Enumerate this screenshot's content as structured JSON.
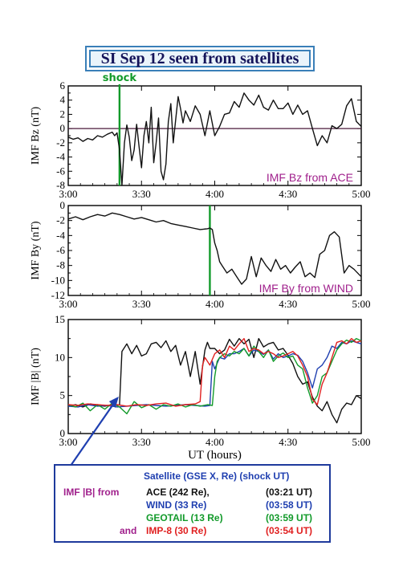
{
  "title": "SI Sep 12 seen from satellites",
  "colors": {
    "title_border": "#3a7fb8",
    "title_text": "#14145a",
    "purple": "#a0208c",
    "blue": "#1f3fb0",
    "green": "#129a2a",
    "red": "#e02020",
    "black": "#111111",
    "zero_line": "#4a1a3a"
  },
  "xaxis": {
    "ticks": [
      "3:00",
      "3:30",
      "4:00",
      "4:30",
      "5:00"
    ],
    "tick_values": [
      0,
      30,
      60,
      90,
      120
    ],
    "label": "UT (hours)"
  },
  "chart_data": [
    {
      "type": "line",
      "ylabel": "IMF Bz (nT)",
      "ylim": [
        -8,
        6
      ],
      "yticks": [
        "6",
        "4",
        "2",
        "0",
        "-2",
        "-4",
        "-6",
        "-8"
      ],
      "ytick_values": [
        6,
        4,
        2,
        0,
        -2,
        -4,
        -6,
        -8
      ],
      "annotation": "IMF Bz from ACE",
      "marker_label": "shock",
      "marker_x": 21,
      "zero_line": true,
      "series": [
        {
          "color": "black",
          "x": [
            0,
            2,
            4,
            6,
            8,
            10,
            12,
            14,
            16,
            18,
            19,
            20,
            21,
            22,
            23,
            24,
            25,
            26,
            27,
            28,
            29,
            30,
            31,
            32,
            33,
            34,
            35,
            36,
            37,
            38,
            39,
            40,
            41,
            42,
            43,
            44,
            45,
            46,
            47,
            48,
            50,
            52,
            54,
            56,
            58,
            60,
            62,
            64,
            66,
            68,
            70,
            72,
            74,
            76,
            78,
            80,
            82,
            84,
            86,
            88,
            90,
            92,
            94,
            96,
            98,
            100,
            102,
            104,
            106,
            108,
            110,
            112,
            114,
            116,
            118,
            120
          ],
          "y": [
            -1.2,
            -1.5,
            -1.3,
            -1.8,
            -1.4,
            -1.6,
            -1.0,
            -1.2,
            -0.8,
            -0.5,
            -1.0,
            -0.6,
            -3.0,
            -8.0,
            -2.0,
            0.5,
            -1.2,
            -4.5,
            -3.0,
            0.6,
            -2.5,
            -5.5,
            -1.0,
            1.0,
            -2.0,
            3.0,
            -4.8,
            -2.0,
            1.5,
            -6.0,
            -7.2,
            -5.0,
            1.0,
            3.5,
            -2.0,
            1.2,
            4.5,
            2.8,
            0.8,
            2.5,
            1.0,
            3.2,
            2.0,
            -1.0,
            2.5,
            -1.0,
            0.3,
            2.0,
            2.2,
            3.8,
            3.0,
            5.0,
            4.0,
            3.3,
            4.7,
            3.0,
            2.6,
            4.0,
            2.8,
            2.8,
            3.6,
            2.0,
            3.3,
            2.0,
            2.5,
            0.0,
            -2.4,
            -1.0,
            -2.0,
            0.4,
            0.0,
            0.6,
            3.2,
            4.2,
            1.0,
            0.3
          ]
        }
      ]
    },
    {
      "type": "line",
      "ylabel": "IMF By (nT)",
      "ylim": [
        -12,
        0
      ],
      "yticks": [
        "0",
        "-2",
        "-4",
        "-6",
        "-8",
        "-10",
        "-12"
      ],
      "ytick_values": [
        0,
        -2,
        -4,
        -6,
        -8,
        -10,
        -12
      ],
      "annotation": "IMF By from WIND",
      "marker_x": 58,
      "series": [
        {
          "color": "black",
          "x": [
            0,
            3,
            6,
            9,
            12,
            15,
            18,
            21,
            24,
            27,
            30,
            33,
            36,
            39,
            42,
            45,
            48,
            51,
            54,
            57,
            58,
            59,
            60,
            61,
            62,
            63,
            65,
            67,
            69,
            71,
            73,
            75,
            77,
            79,
            81,
            83,
            85,
            87,
            89,
            91,
            93,
            95,
            97,
            99,
            101,
            103,
            105,
            107,
            109,
            111,
            113,
            115,
            117,
            120
          ],
          "y": [
            -1.8,
            -1.5,
            -1.9,
            -1.5,
            -1.2,
            -1.4,
            -1.0,
            -1.2,
            -1.5,
            -1.8,
            -1.6,
            -1.9,
            -2.2,
            -2.0,
            -2.4,
            -2.6,
            -2.8,
            -3.0,
            -3.2,
            -3.1,
            -3.0,
            -3.2,
            -5.0,
            -6.0,
            -7.5,
            -8.0,
            -9.0,
            -8.5,
            -9.5,
            -10.5,
            -9.8,
            -6.8,
            -9.5,
            -7.0,
            -8.0,
            -8.8,
            -7.2,
            -8.5,
            -8.0,
            -9.0,
            -8.2,
            -7.5,
            -9.5,
            -9.0,
            -9.6,
            -6.5,
            -6.0,
            -4.0,
            -3.5,
            -4.2,
            -9.0,
            -8.0,
            -8.5,
            -9.5
          ]
        }
      ]
    },
    {
      "type": "line",
      "ylabel": "IMF |B| (nT)",
      "ylim": [
        0,
        15
      ],
      "yticks": [
        "0",
        "5",
        "10",
        "15"
      ],
      "ytick_values": [
        0,
        5,
        10,
        15
      ],
      "series": [
        {
          "color": "black",
          "x": [
            0,
            3,
            6,
            9,
            12,
            15,
            18,
            20,
            21,
            22,
            24,
            26,
            28,
            30,
            32,
            34,
            36,
            38,
            40,
            42,
            44,
            46,
            48,
            50,
            52,
            54,
            56,
            57,
            58,
            60,
            62,
            64,
            66,
            68,
            70,
            72,
            74,
            76,
            78,
            80,
            82,
            84,
            86,
            88,
            90,
            92,
            94,
            96,
            98,
            100,
            102,
            104,
            106,
            108,
            110,
            112,
            114,
            116,
            118,
            120
          ],
          "y": [
            3.6,
            3.8,
            3.5,
            3.9,
            3.7,
            3.6,
            3.8,
            3.7,
            3.8,
            10.8,
            11.8,
            10.5,
            11.6,
            10.2,
            10.5,
            11.8,
            12.0,
            11.3,
            12.2,
            10.8,
            11.6,
            9.0,
            10.8,
            7.5,
            10.8,
            6.5,
            11.0,
            12.0,
            11.2,
            11.2,
            10.5,
            11.0,
            12.4,
            11.5,
            12.5,
            11.8,
            12.4,
            10.0,
            12.5,
            11.4,
            11.8,
            12.0,
            11.0,
            11.2,
            10.3,
            9.2,
            7.5,
            6.5,
            6.8,
            4.8,
            3.6,
            3.0,
            4.2,
            2.5,
            1.4,
            3.2,
            4.0,
            3.8,
            5.0,
            4.6
          ]
        },
        {
          "color": "blue",
          "x": [
            0,
            4,
            8,
            12,
            16,
            20,
            24,
            28,
            32,
            36,
            40,
            44,
            48,
            52,
            56,
            58,
            59,
            60,
            62,
            64,
            66,
            68,
            70,
            72,
            74,
            76,
            78,
            80,
            82,
            84,
            86,
            88,
            90,
            92,
            94,
            96,
            98,
            100,
            102,
            104,
            106,
            108,
            110,
            112,
            114,
            116,
            118,
            120
          ],
          "y": [
            3.6,
            3.5,
            3.8,
            3.6,
            3.7,
            3.5,
            3.6,
            3.7,
            3.8,
            3.7,
            3.6,
            3.7,
            3.8,
            3.7,
            3.6,
            3.7,
            9.5,
            8.5,
            10.0,
            9.8,
            10.5,
            10.5,
            10.8,
            11.2,
            10.2,
            11.0,
            10.8,
            10.4,
            11.0,
            9.8,
            10.5,
            10.0,
            10.2,
            10.5,
            10.3,
            9.5,
            8.0,
            6.0,
            8.5,
            9.0,
            10.0,
            11.5,
            11.2,
            12.0,
            11.8,
            12.2,
            12.0,
            11.8
          ]
        },
        {
          "color": "green",
          "x": [
            0,
            3,
            6,
            9,
            12,
            15,
            18,
            21,
            24,
            27,
            30,
            33,
            36,
            39,
            42,
            45,
            48,
            51,
            54,
            57,
            59,
            60,
            61,
            62,
            64,
            66,
            68,
            70,
            72,
            74,
            76,
            78,
            80,
            82,
            84,
            86,
            88,
            90,
            92,
            94,
            96,
            98,
            100,
            102,
            104,
            106,
            108,
            110,
            112,
            114,
            116,
            118,
            120
          ],
          "y": [
            3.8,
            3.5,
            4.0,
            3.0,
            3.8,
            3.2,
            4.0,
            3.5,
            2.6,
            4.2,
            3.4,
            3.8,
            3.2,
            3.8,
            3.6,
            3.9,
            3.5,
            3.8,
            3.6,
            3.8,
            3.7,
            7.5,
            9.5,
            10.0,
            10.5,
            10.2,
            10.8,
            10.5,
            11.2,
            10.2,
            11.5,
            10.8,
            10.0,
            11.0,
            9.5,
            10.2,
            10.6,
            10.0,
            10.2,
            9.0,
            8.5,
            6.0,
            4.0,
            5.0,
            7.5,
            8.0,
            9.5,
            11.0,
            11.8,
            12.3,
            12.0,
            12.5,
            12.2
          ]
        },
        {
          "color": "red",
          "x": [
            0,
            4,
            8,
            12,
            16,
            20,
            24,
            28,
            32,
            36,
            40,
            42,
            44,
            48,
            52,
            54,
            55,
            56,
            58,
            60,
            62,
            64,
            66,
            68,
            70,
            72,
            74,
            76,
            78,
            80,
            82,
            84,
            86,
            88,
            90,
            92,
            94,
            96,
            98,
            100,
            102,
            104,
            106,
            108,
            110,
            112,
            114,
            116,
            118,
            120
          ],
          "y": [
            3.8,
            3.7,
            3.9,
            3.8,
            3.7,
            3.8,
            3.6,
            3.8,
            3.7,
            3.9,
            4.0,
            3.8,
            3.6,
            3.8,
            3.9,
            4.2,
            9.0,
            10.0,
            9.0,
            10.5,
            11.0,
            10.0,
            11.5,
            11.0,
            11.8,
            12.5,
            10.8,
            11.2,
            11.0,
            10.5,
            10.8,
            10.5,
            10.0,
            10.2,
            10.5,
            10.8,
            10.2,
            9.0,
            7.5,
            4.5,
            3.8,
            6.5,
            8.0,
            10.0,
            12.0,
            12.2,
            11.8,
            12.5,
            12.0,
            12.2
          ]
        }
      ]
    }
  ],
  "legend": {
    "header": "Satellite (GSE X, Re) (shock UT)",
    "prefix": "IMF |B| from",
    "and_word": "and",
    "rows": [
      {
        "name": "ACE (242 Re),",
        "time": "(03:21 UT)",
        "name_color": "black",
        "time_color": "black"
      },
      {
        "name": "WIND (33 Re)",
        "time": "(03:58 UT)",
        "name_color": "blue",
        "time_color": "blue"
      },
      {
        "name": "GEOTAIL (13 Re)",
        "time": "(03:59 UT)",
        "name_color": "green",
        "time_color": "green"
      },
      {
        "name": "IMP-8 (30 Re)",
        "time": "(03:54 UT)",
        "name_color": "red",
        "time_color": "red"
      }
    ]
  }
}
